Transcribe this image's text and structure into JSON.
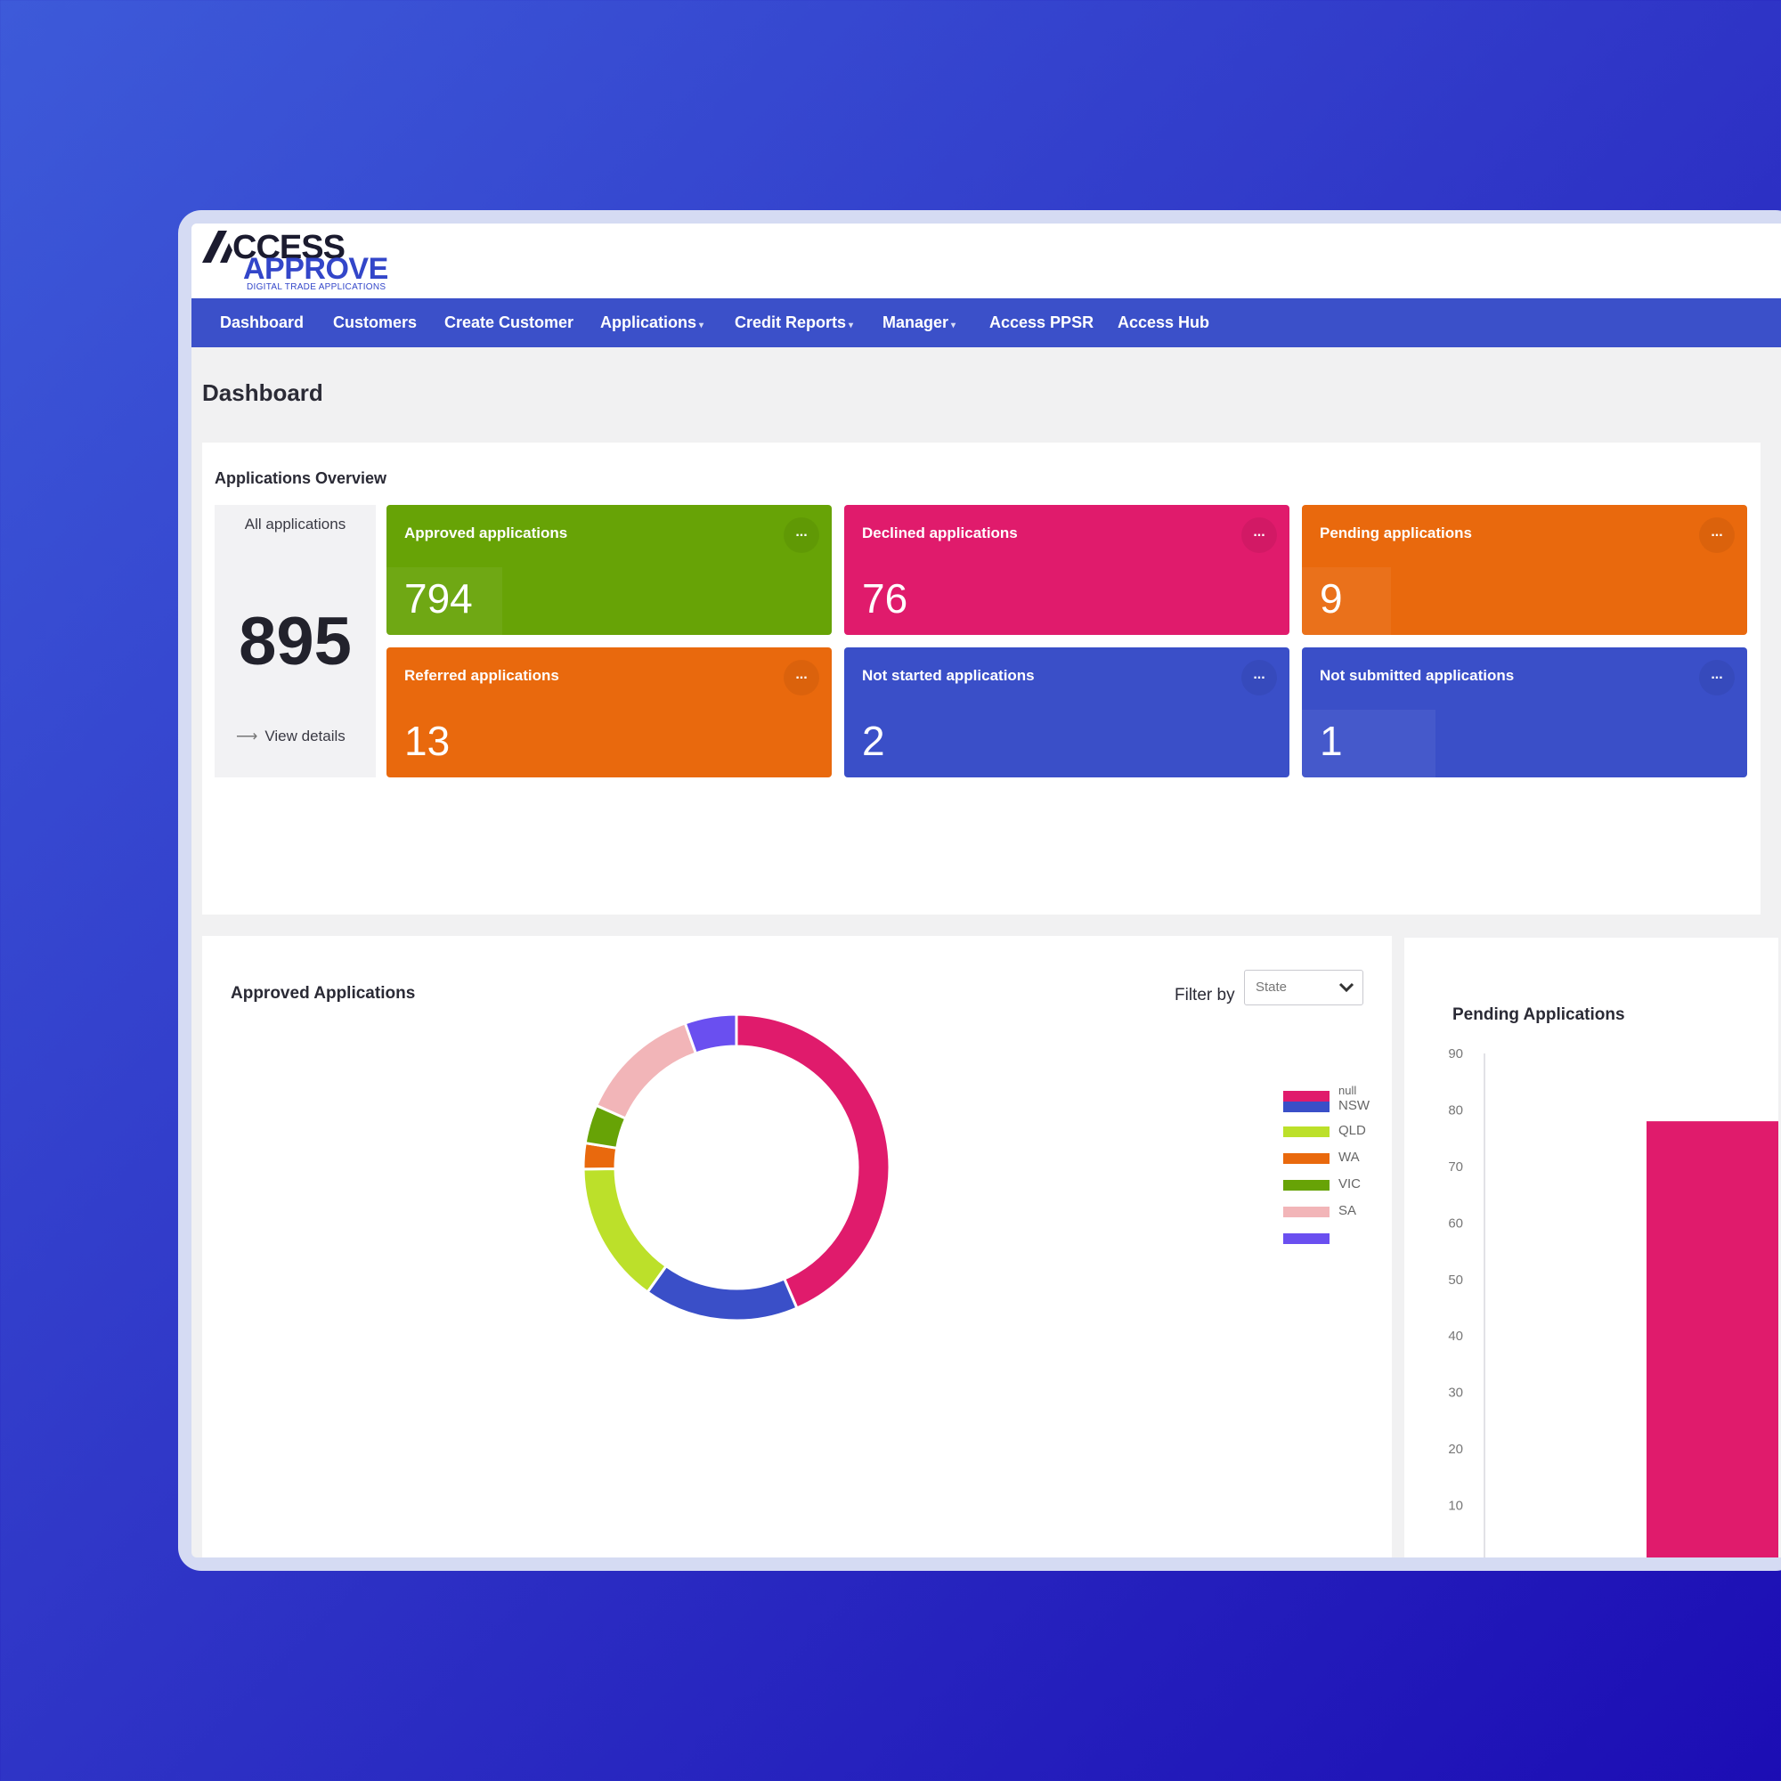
{
  "brand": {
    "logo_top": "CCESS",
    "logo_bottom": "APPROVE",
    "logo_tagline": "DIGITAL TRADE APPLICATIONS",
    "accent": "#3b50c9"
  },
  "nav": {
    "items": [
      {
        "label": "Dashboard",
        "caret": false
      },
      {
        "label": "Customers",
        "caret": false
      },
      {
        "label": "Create Customer",
        "caret": false
      },
      {
        "label": "Applications",
        "caret": true
      },
      {
        "label": "Credit Reports",
        "caret": true
      },
      {
        "label": "Manager",
        "caret": true
      },
      {
        "label": "Access PPSR",
        "caret": false
      },
      {
        "label": "Access Hub",
        "caret": false
      }
    ]
  },
  "page": {
    "title": "Dashboard"
  },
  "overview": {
    "title": "Applications Overview",
    "all": {
      "label": "All applications",
      "value": "895",
      "view_details": "View details"
    },
    "cards": [
      {
        "label": "Approved applications",
        "value": "794",
        "color": "#67a306"
      },
      {
        "label": "Declined applications",
        "value": "76",
        "color": "#e01b6c"
      },
      {
        "label": "Pending applications",
        "value": "9",
        "color": "#e9690d"
      },
      {
        "label": "Referred applications",
        "value": "13",
        "color": "#e9690d"
      },
      {
        "label": "Not started applications",
        "value": "2",
        "color": "#3a4fc8"
      },
      {
        "label": "Not submitted applications",
        "value": "1",
        "color": "#3a4fc8"
      }
    ],
    "more_label": "..."
  },
  "approved": {
    "title": "Approved Applications",
    "filter_label": "Filter by",
    "filter_value": "State"
  },
  "pending": {
    "title": "Pending Applications"
  },
  "chart_data": [
    {
      "type": "pie",
      "categories": [
        "null",
        "NSW",
        "QLD",
        "WA",
        "VIC",
        "SA",
        ""
      ],
      "values": [
        320,
        120,
        110,
        20,
        30,
        95,
        40
      ],
      "colors": [
        "#e01b6c",
        "#3a4fc8",
        "#bce02a",
        "#e9690d",
        "#67a306",
        "#f2b5b8",
        "#6a4ff0"
      ],
      "title": "",
      "legend": "right"
    },
    {
      "type": "bar",
      "categories": [
        ""
      ],
      "values": [
        78
      ],
      "colors": [
        "#e01b6c"
      ],
      "title": "",
      "ylim": [
        0,
        90
      ],
      "yticks": [
        10,
        20,
        30,
        40,
        50,
        60,
        70,
        80,
        90
      ]
    }
  ]
}
